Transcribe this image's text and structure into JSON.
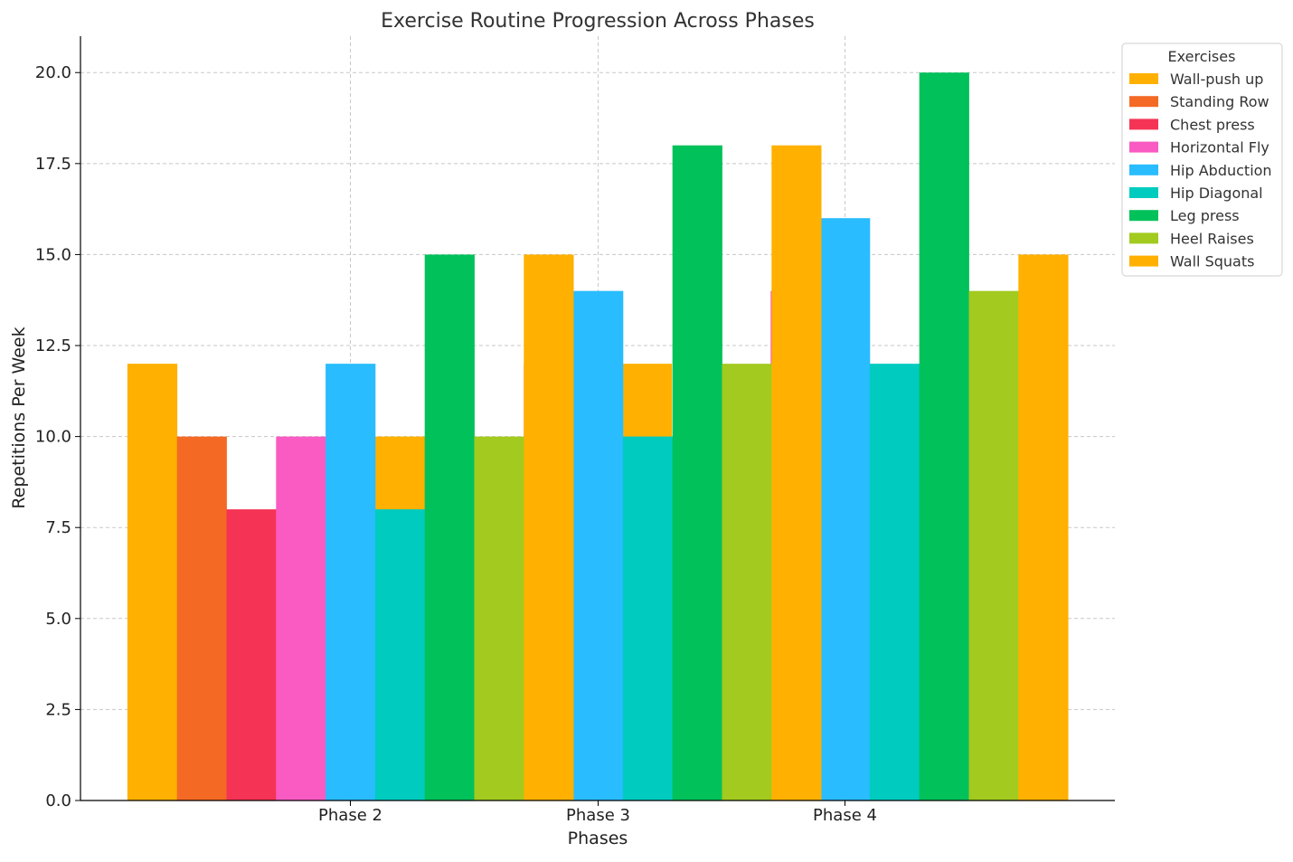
{
  "chart_data": {
    "type": "bar",
    "title": "Exercise Routine Progression Across Phases",
    "xlabel": "Phases",
    "ylabel": "Repetitions Per Week",
    "ylim": [
      0,
      21
    ],
    "yticks": [
      "0.0",
      "2.5",
      "5.0",
      "7.5",
      "10.0",
      "12.5",
      "15.0",
      "17.5",
      "20.0"
    ],
    "ytick_values": [
      0,
      2.5,
      5,
      7.5,
      10,
      12.5,
      15,
      17.5,
      20
    ],
    "xtick_labels": [
      "Phase 2",
      "Phase 3",
      "Phase 4"
    ],
    "grid": true,
    "legend": {
      "title": "Exercises",
      "placement": "upper-right outside"
    },
    "series": [
      {
        "name": "Wall-push up",
        "color": "#FFB000",
        "values": [
          12,
          10,
          12
        ]
      },
      {
        "name": "Standing Row",
        "color": "#F46A25",
        "values": [
          10
        ]
      },
      {
        "name": "Chest press",
        "color": "#F53455",
        "values": [
          8
        ]
      },
      {
        "name": "Horizontal Fly",
        "color": "#F95BC3",
        "values": [
          10,
          12,
          14
        ]
      },
      {
        "name": "Hip Abduction",
        "color": "#29BCFF",
        "values": [
          12,
          14,
          16
        ]
      },
      {
        "name": "Hip Diagonal",
        "color": "#00CBBF",
        "values": [
          8,
          10,
          12
        ]
      },
      {
        "name": "Leg press",
        "color": "#00C15A",
        "values": [
          15,
          18,
          20
        ]
      },
      {
        "name": "Heel Raises",
        "color": "#A2CA1F",
        "values": [
          10,
          12,
          14
        ]
      },
      {
        "name": "Wall Squats",
        "color": "#FFB000",
        "values": [
          15,
          18,
          15
        ]
      }
    ]
  }
}
